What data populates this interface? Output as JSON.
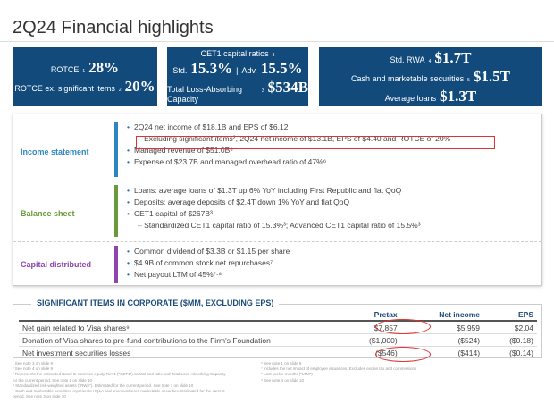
{
  "title": "2Q24 Financial highlights",
  "kpi": {
    "rotce_label": "ROTCE",
    "rotce_sup": "1",
    "rotce": "28%",
    "rotce_ex_label": "ROTCE ex. significant items",
    "rotce_ex_sup": "2",
    "rotce_ex": "20%",
    "cet1_label": "CET1 capital ratios",
    "cet1_sup": "3",
    "std_label": "Std.",
    "std": "15.3%",
    "sep": "|",
    "adv_label": "Adv.",
    "adv": "15.5%",
    "tlac_label": "Total Loss-Absorbing Capacity",
    "tlac_sup": "3",
    "tlac": "$534B",
    "rwa_label": "Std. RWA",
    "rwa_sup": "4",
    "rwa": "$1.7T",
    "cash_label": "Cash and marketable securities",
    "cash_sup": "5",
    "cash": "$1.5T",
    "loans_label": "Average loans",
    "loans": "$1.3T"
  },
  "sections": {
    "income": {
      "label": "Income statement",
      "color": "#2e86c1",
      "items": [
        "2Q24 net income of $18.1B and EPS of $6.12",
        "Excluding significant items², 2Q24 net income of $13.1B, EPS of $4.40 and ROTCE of 20%",
        "Managed revenue of $51.0B⁶",
        "Expense of $23.7B and managed overhead ratio of 47%⁶"
      ]
    },
    "balance": {
      "label": "Balance sheet",
      "color": "#6a9a3a",
      "items": [
        "Loans: average loans of $1.3T up 6% YoY including First Republic and flat QoQ",
        "Deposits: average deposits of $2.4T down 1% YoY and flat QoQ",
        "CET1 capital of $267B³",
        "Standardized CET1 capital ratio of 15.3%³; Advanced CET1 capital ratio of 15.5%³"
      ]
    },
    "capital": {
      "label": "Capital distributed",
      "color": "#8e44ad",
      "items": [
        "Common dividend of $3.3B or $1.15 per share",
        "$4.9B of common stock net repurchases⁷",
        "Net payout LTM of 45%⁷·⁸"
      ]
    }
  },
  "significant": {
    "title": "SIGNIFICANT ITEMS IN CORPORATE ($MM, EXCLUDING EPS)",
    "headers": [
      "",
      "Pretax",
      "Net income",
      "EPS"
    ],
    "rows": [
      [
        "Net gain related to Visa shares⁹",
        "$7,857",
        "$5,959",
        "$2.04"
      ],
      [
        "Donation of Visa shares to pre-fund contributions to the Firm's Foundation",
        "($1,000)",
        "($524)",
        "($0.18)"
      ],
      [
        "Net investment securities losses",
        "($546)",
        "($414)",
        "($0.14)"
      ]
    ]
  },
  "footnotes": {
    "left": [
      "¹ See note 3 on slide 9",
      "² See note 4 on slide 9",
      "³ Represents the estimated Basel III common equity Tier 1 (\"CET1\") capital and ratio and Total Loss-Absorbing Capacity for the current period. See note 1 on slide 10",
      "⁴ Standardized risk-weighted assets (\"RWA\"). Estimated for the current period. See note 1 on slide 10",
      "⁵ Cash and marketable securities represents HQLA and unencumbered marketable securities. Estimated for the current period. See note 3 on slide 10"
    ],
    "right": [
      "⁶ See note 1 on slide 9",
      "⁷ Includes the net impact of employee issuances. Excludes excise tax and commissions",
      "⁸ Last twelve months (\"LTM\")",
      "⁹ See note 4 on slide 10"
    ]
  }
}
